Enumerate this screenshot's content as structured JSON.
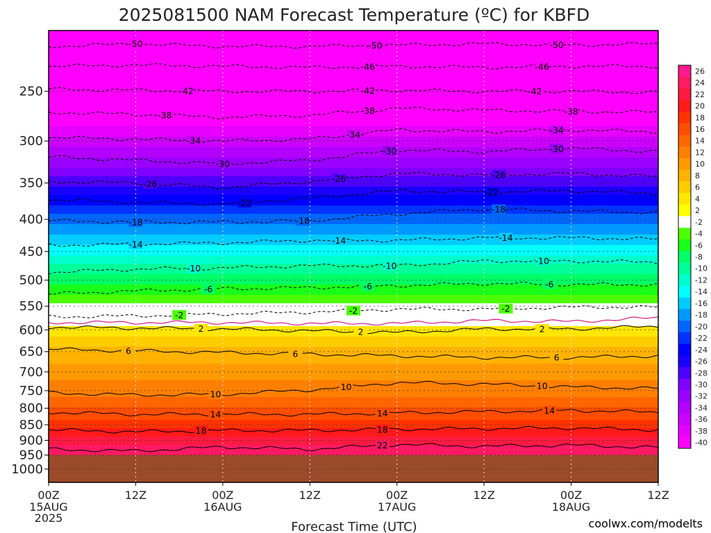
{
  "chart_data": {
    "type": "heatmap",
    "title": "2025081500 NAM Forecast Temperature (ºC) for KBFD",
    "xlabel": "Forecast Time (UTC)",
    "ylabel": "",
    "credit": "coolwx.com/modelts",
    "colors": {
      "credit": "#e8373a",
      "ground": "#9b4a2a",
      "freezing_line": "#d62a8c"
    },
    "x_ticks": [
      {
        "hour": 0,
        "label": "00Z",
        "date": "15AUG",
        "year": "2025"
      },
      {
        "hour": 12,
        "label": "12Z",
        "date": "",
        "year": ""
      },
      {
        "hour": 24,
        "label": "00Z",
        "date": "16AUG",
        "year": ""
      },
      {
        "hour": 36,
        "label": "12Z",
        "date": "",
        "year": ""
      },
      {
        "hour": 48,
        "label": "00Z",
        "date": "17AUG",
        "year": ""
      },
      {
        "hour": 60,
        "label": "12Z",
        "date": "",
        "year": ""
      },
      {
        "hour": 72,
        "label": "00Z",
        "date": "18AUG",
        "year": ""
      },
      {
        "hour": 84,
        "label": "12Z",
        "date": "",
        "year": ""
      }
    ],
    "x_range_hours": [
      0,
      84
    ],
    "y_ticks_hpa": [
      250,
      300,
      350,
      400,
      450,
      500,
      550,
      600,
      650,
      700,
      750,
      800,
      850,
      900,
      950,
      1000
    ],
    "y_range_hpa": [
      200,
      1050
    ],
    "y_scale": "log",
    "ground_pressure_hpa": 950,
    "colorbar": {
      "labels": [
        "26",
        "24",
        "22",
        "20",
        "18",
        "16",
        "14",
        "12",
        "10",
        "8",
        "6",
        "4",
        "2",
        "-2",
        "-4",
        "-6",
        "-8",
        "-10",
        "-12",
        "-14",
        "-16",
        "-18",
        "-20",
        "-22",
        "-24",
        "-26",
        "-28",
        "-30",
        "-32",
        "-34",
        "-36",
        "-38",
        "-40"
      ],
      "colors": [
        "#ff1a8c",
        "#ff1a63",
        "#ff1a40",
        "#ff1a1a",
        "#ff3300",
        "#ff4d00",
        "#ff6600",
        "#ff7f00",
        "#ff9900",
        "#ffb300",
        "#ffcc00",
        "#ffe600",
        "#ffff00",
        "#ffffff",
        "#4dff00",
        "#19ff19",
        "#00ff66",
        "#00ff99",
        "#00ffcc",
        "#00ffff",
        "#00ccff",
        "#0099ff",
        "#0066ff",
        "#0033ff",
        "#0000ff",
        "#1a00ff",
        "#4d00ff",
        "#7f00ff",
        "#9900ff",
        "#b300ff",
        "#cc00ff",
        "#e600ff",
        "#ff00ff"
      ]
    },
    "profile": [
      {
        "p": 200,
        "t": -56
      },
      {
        "p": 230,
        "t": -48
      },
      {
        "p": 250,
        "t": -44
      },
      {
        "p": 280,
        "t": -39
      },
      {
        "p": 300,
        "t": -35
      },
      {
        "p": 330,
        "t": -30
      },
      {
        "p": 360,
        "t": -25
      },
      {
        "p": 400,
        "t": -19
      },
      {
        "p": 440,
        "t": -14
      },
      {
        "p": 480,
        "t": -9
      },
      {
        "p": 520,
        "t": -5
      },
      {
        "p": 550,
        "t": -1
      },
      {
        "p": 580,
        "t": 1
      },
      {
        "p": 600,
        "t": 3
      },
      {
        "p": 640,
        "t": 6
      },
      {
        "p": 700,
        "t": 9
      },
      {
        "p": 750,
        "t": 11
      },
      {
        "p": 800,
        "t": 14
      },
      {
        "p": 850,
        "t": 17
      },
      {
        "p": 900,
        "t": 21
      },
      {
        "p": 950,
        "t": 24
      },
      {
        "p": 1050,
        "t": 27
      }
    ],
    "contours": [
      {
        "t": -50,
        "style": "dashed",
        "points": [
          [
            0,
            212
          ],
          [
            12,
            210
          ],
          [
            24,
            212
          ],
          [
            36,
            212
          ],
          [
            48,
            211
          ],
          [
            60,
            210
          ],
          [
            72,
            211
          ],
          [
            84,
            210
          ]
        ],
        "label_hours": [
          12,
          45,
          70
        ]
      },
      {
        "t": -46,
        "style": "dashed",
        "points": [
          [
            0,
            228
          ],
          [
            12,
            227
          ],
          [
            24,
            228
          ],
          [
            36,
            229
          ],
          [
            48,
            228
          ],
          [
            60,
            229
          ],
          [
            72,
            228
          ],
          [
            84,
            228
          ]
        ],
        "label_hours": [
          44,
          68
        ]
      },
      {
        "t": -42,
        "style": "dashed",
        "points": [
          [
            0,
            248
          ],
          [
            12,
            249
          ],
          [
            24,
            250
          ],
          [
            36,
            250
          ],
          [
            48,
            249
          ],
          [
            60,
            250
          ],
          [
            72,
            250
          ],
          [
            84,
            251
          ]
        ],
        "label_hours": [
          19,
          44,
          67
        ]
      },
      {
        "t": -38,
        "style": "dashed",
        "points": [
          [
            0,
            270
          ],
          [
            12,
            272
          ],
          [
            24,
            275
          ],
          [
            36,
            273
          ],
          [
            48,
            266
          ],
          [
            60,
            268
          ],
          [
            72,
            269
          ],
          [
            84,
            270
          ]
        ],
        "label_hours": [
          16,
          44,
          72
        ]
      },
      {
        "t": -34,
        "style": "dashed",
        "points": [
          [
            0,
            296
          ],
          [
            12,
            298
          ],
          [
            24,
            300
          ],
          [
            36,
            298
          ],
          [
            48,
            288
          ],
          [
            60,
            290
          ],
          [
            72,
            288
          ],
          [
            84,
            290
          ]
        ],
        "label_hours": [
          20,
          42,
          70
        ]
      },
      {
        "t": -30,
        "style": "dashed",
        "points": [
          [
            0,
            318
          ],
          [
            12,
            322
          ],
          [
            24,
            326
          ],
          [
            36,
            322
          ],
          [
            48,
            310
          ],
          [
            60,
            312
          ],
          [
            72,
            308
          ],
          [
            84,
            312
          ]
        ],
        "label_hours": [
          24,
          47,
          70
        ]
      },
      {
        "t": -26,
        "style": "dashed",
        "points": [
          [
            0,
            348
          ],
          [
            12,
            350
          ],
          [
            24,
            356
          ],
          [
            36,
            348
          ],
          [
            48,
            338
          ],
          [
            60,
            340
          ],
          [
            72,
            338
          ],
          [
            84,
            342
          ]
        ],
        "label_hours": [
          14,
          40,
          62
        ]
      },
      {
        "t": -22,
        "style": "dashed",
        "points": [
          [
            0,
            372
          ],
          [
            12,
            376
          ],
          [
            24,
            378
          ],
          [
            36,
            370
          ],
          [
            48,
            360
          ],
          [
            60,
            362
          ],
          [
            72,
            360
          ],
          [
            84,
            364
          ]
        ],
        "label_hours": [
          27,
          61
        ]
      },
      {
        "t": -18,
        "style": "dashed",
        "points": [
          [
            0,
            402
          ],
          [
            12,
            404
          ],
          [
            24,
            404
          ],
          [
            36,
            402
          ],
          [
            48,
            392
          ],
          [
            60,
            385
          ],
          [
            72,
            388
          ],
          [
            84,
            390
          ]
        ],
        "label_hours": [
          12,
          35,
          62
        ]
      },
      {
        "t": -14,
        "style": "dashed",
        "points": [
          [
            0,
            440
          ],
          [
            12,
            438
          ],
          [
            24,
            436
          ],
          [
            36,
            432
          ],
          [
            48,
            432
          ],
          [
            60,
            428
          ],
          [
            72,
            428
          ],
          [
            84,
            430
          ]
        ],
        "label_hours": [
          12,
          40,
          63
        ]
      },
      {
        "t": -10,
        "style": "dashed",
        "points": [
          [
            0,
            486
          ],
          [
            12,
            480
          ],
          [
            24,
            478
          ],
          [
            36,
            474
          ],
          [
            48,
            474
          ],
          [
            60,
            466
          ],
          [
            72,
            466
          ],
          [
            84,
            468
          ]
        ],
        "label_hours": [
          20,
          47,
          68
        ]
      },
      {
        "t": -6,
        "style": "dashed",
        "points": [
          [
            0,
            526
          ],
          [
            12,
            520
          ],
          [
            24,
            516
          ],
          [
            36,
            514
          ],
          [
            48,
            510
          ],
          [
            60,
            506
          ],
          [
            72,
            508
          ],
          [
            84,
            508
          ]
        ],
        "label_hours": [
          22,
          44,
          69
        ]
      },
      {
        "t": -2,
        "style": "dashed",
        "points": [
          [
            0,
            572
          ],
          [
            12,
            570
          ],
          [
            24,
            566
          ],
          [
            36,
            562
          ],
          [
            48,
            556
          ],
          [
            60,
            556
          ],
          [
            72,
            552
          ],
          [
            84,
            552
          ]
        ],
        "label_hours": [
          18,
          42,
          63
        ]
      },
      {
        "t": 0,
        "style": "freezing",
        "points": [
          [
            0,
            584
          ],
          [
            12,
            584
          ],
          [
            24,
            584
          ],
          [
            36,
            586
          ],
          [
            48,
            586
          ],
          [
            60,
            580
          ],
          [
            72,
            582
          ],
          [
            84,
            574
          ]
        ],
        "label_hours": []
      },
      {
        "t": 2,
        "style": "solid",
        "points": [
          [
            0,
            594
          ],
          [
            12,
            596
          ],
          [
            24,
            598
          ],
          [
            36,
            602
          ],
          [
            48,
            606
          ],
          [
            60,
            598
          ],
          [
            72,
            598
          ],
          [
            84,
            592
          ]
        ],
        "label_hours": [
          21,
          43,
          68
        ]
      },
      {
        "t": 6,
        "style": "solid",
        "points": [
          [
            0,
            644
          ],
          [
            12,
            648
          ],
          [
            24,
            652
          ],
          [
            36,
            656
          ],
          [
            48,
            660
          ],
          [
            60,
            664
          ],
          [
            72,
            664
          ],
          [
            84,
            660
          ]
        ],
        "label_hours": [
          11,
          34,
          70
        ]
      },
      {
        "t": 10,
        "style": "solid",
        "points": [
          [
            0,
            756
          ],
          [
            12,
            762
          ],
          [
            24,
            760
          ],
          [
            36,
            748
          ],
          [
            48,
            728
          ],
          [
            60,
            732
          ],
          [
            72,
            740
          ],
          [
            84,
            744
          ]
        ],
        "label_hours": [
          23,
          41,
          68
        ]
      },
      {
        "t": 14,
        "style": "solid",
        "points": [
          [
            0,
            812
          ],
          [
            12,
            818
          ],
          [
            24,
            818
          ],
          [
            36,
            818
          ],
          [
            48,
            814
          ],
          [
            60,
            810
          ],
          [
            72,
            806
          ],
          [
            84,
            812
          ]
        ],
        "label_hours": [
          23,
          46,
          69
        ]
      },
      {
        "t": 18,
        "style": "solid",
        "points": [
          [
            0,
            866
          ],
          [
            12,
            872
          ],
          [
            24,
            868
          ],
          [
            36,
            868
          ],
          [
            48,
            864
          ],
          [
            60,
            862
          ],
          [
            72,
            860
          ],
          [
            84,
            866
          ]
        ],
        "label_hours": [
          21,
          46
        ]
      },
      {
        "t": 22,
        "style": "solid",
        "points": [
          [
            0,
            930
          ],
          [
            12,
            936
          ],
          [
            24,
            922
          ],
          [
            36,
            930
          ],
          [
            48,
            914
          ],
          [
            60,
            920
          ],
          [
            72,
            916
          ],
          [
            84,
            924
          ]
        ],
        "label_hours": [
          46
        ]
      }
    ]
  }
}
